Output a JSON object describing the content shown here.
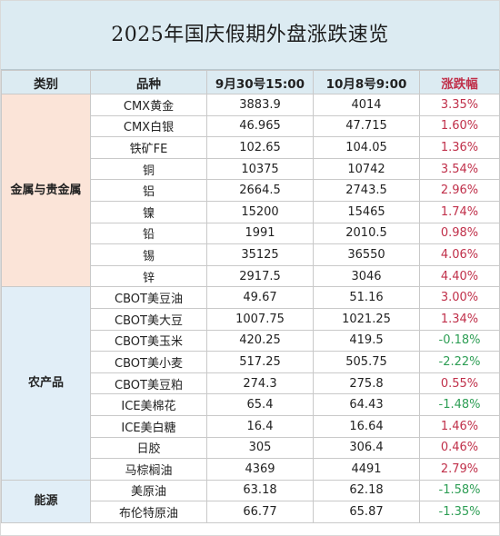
{
  "title": "2025年国庆假期外盘涨跌速览",
  "headers": {
    "category": "类别",
    "product": "品种",
    "before": "9月30号15:00",
    "after": "10月8号9:00",
    "change": "涨跌幅"
  },
  "groups": [
    {
      "category": "金属与贵金属",
      "style": "metal",
      "rows": [
        {
          "name": "CMX黄金",
          "before": "3883.9",
          "after": "4014",
          "change": "3.35%",
          "dir": "pos"
        },
        {
          "name": "CMX白银",
          "before": "46.965",
          "after": "47.715",
          "change": "1.60%",
          "dir": "pos"
        },
        {
          "name": "铁矿FE",
          "before": "102.65",
          "after": "104.05",
          "change": "1.36%",
          "dir": "pos"
        },
        {
          "name": "铜",
          "before": "10375",
          "after": "10742",
          "change": "3.54%",
          "dir": "pos"
        },
        {
          "name": "铝",
          "before": "2664.5",
          "after": "2743.5",
          "change": "2.96%",
          "dir": "pos"
        },
        {
          "name": "镍",
          "before": "15200",
          "after": "15465",
          "change": "1.74%",
          "dir": "pos"
        },
        {
          "name": "铅",
          "before": "1991",
          "after": "2010.5",
          "change": "0.98%",
          "dir": "pos"
        },
        {
          "name": "锡",
          "before": "35125",
          "after": "36550",
          "change": "4.06%",
          "dir": "pos"
        },
        {
          "name": "锌",
          "before": "2917.5",
          "after": "3046",
          "change": "4.40%",
          "dir": "pos"
        }
      ]
    },
    {
      "category": "农产品",
      "style": "agri",
      "rows": [
        {
          "name": "CBOT美豆油",
          "before": "49.67",
          "after": "51.16",
          "change": "3.00%",
          "dir": "pos"
        },
        {
          "name": "CBOT美大豆",
          "before": "1007.75",
          "after": "1021.25",
          "change": "1.34%",
          "dir": "pos"
        },
        {
          "name": "CBOT美玉米",
          "before": "420.25",
          "after": "419.5",
          "change": "-0.18%",
          "dir": "neg"
        },
        {
          "name": "CBOT美小麦",
          "before": "517.25",
          "after": "505.75",
          "change": "-2.22%",
          "dir": "neg"
        },
        {
          "name": "CBOT美豆粕",
          "before": "274.3",
          "after": "275.8",
          "change": "0.55%",
          "dir": "pos"
        },
        {
          "name": "ICE美棉花",
          "before": "65.4",
          "after": "64.43",
          "change": "-1.48%",
          "dir": "neg"
        },
        {
          "name": "ICE美白糖",
          "before": "16.4",
          "after": "16.64",
          "change": "1.46%",
          "dir": "pos"
        },
        {
          "name": "日胶",
          "before": "305",
          "after": "306.4",
          "change": "0.46%",
          "dir": "pos"
        },
        {
          "name": "马棕榈油",
          "before": "4369",
          "after": "4491",
          "change": "2.79%",
          "dir": "pos"
        }
      ]
    },
    {
      "category": "能源",
      "style": "energy",
      "rows": [
        {
          "name": "美原油",
          "before": "63.18",
          "after": "62.18",
          "change": "-1.58%",
          "dir": "neg"
        },
        {
          "name": "布伦特原油",
          "before": "66.77",
          "after": "65.87",
          "change": "-1.35%",
          "dir": "neg"
        }
      ]
    }
  ],
  "colors": {
    "header_bg": "#dcebf2",
    "metal_bg": "#fbe4d8",
    "agri_bg": "#e1eef7",
    "up": "#c0304a",
    "down": "#2e9e55"
  }
}
